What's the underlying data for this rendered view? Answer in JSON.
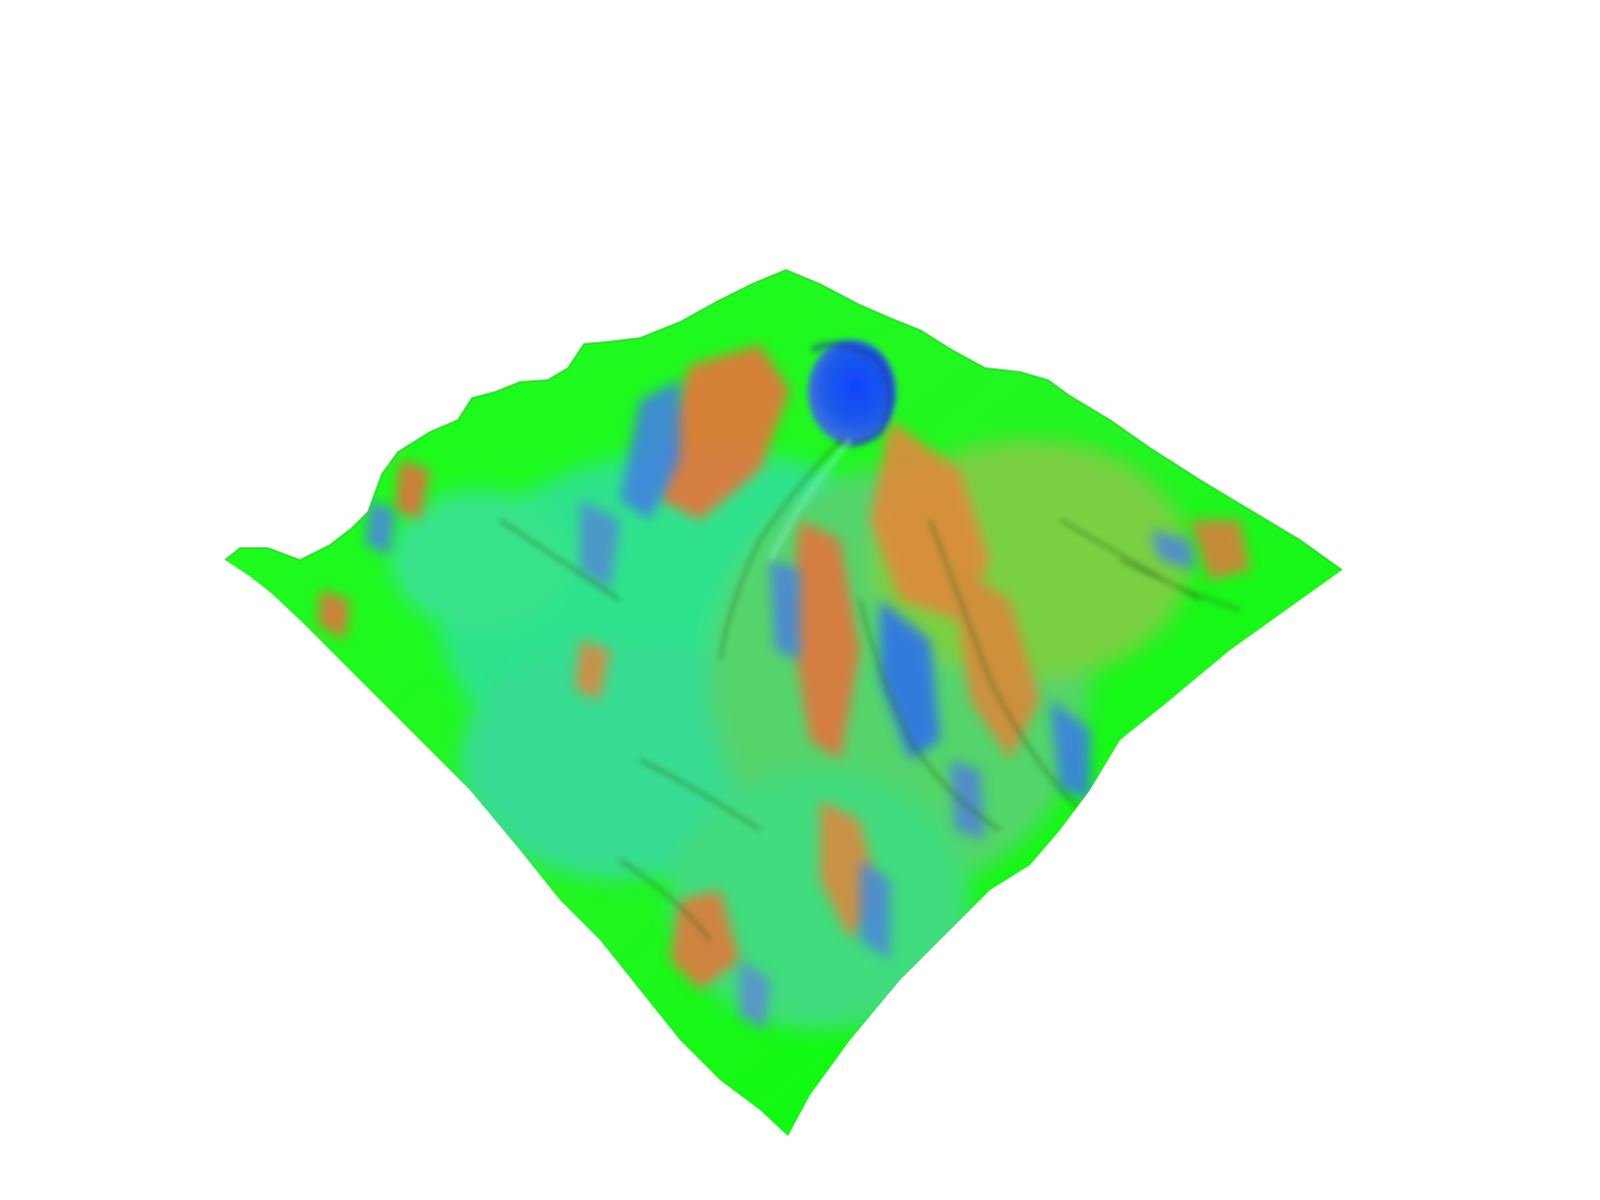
{
  "scene": {
    "type": "3d-terrain-surface",
    "subject": "volcano",
    "background_color": "#ffffff",
    "surface_colormap": {
      "base": "#00ff00",
      "mid": "#33cc99",
      "warm": "#e8743a",
      "cool": "#2f7fe8",
      "crater": "#1a4cf0",
      "shadow": "#2e6a1c"
    }
  }
}
